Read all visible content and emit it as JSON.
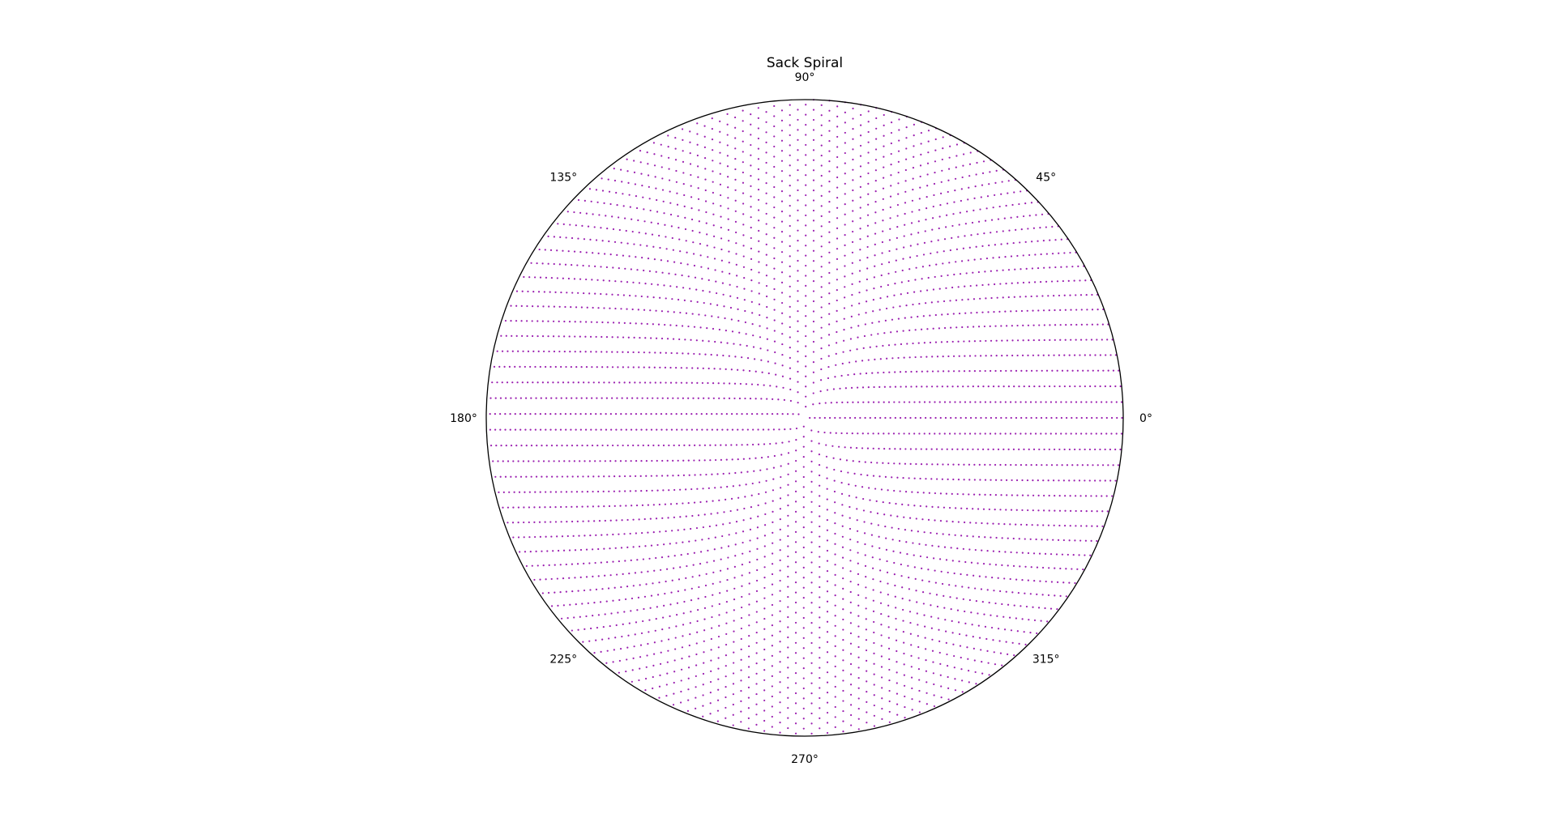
{
  "chart_data": {
    "type": "scatter",
    "projection": "polar",
    "title": "Sack Spiral",
    "theta_ticks": [
      {
        "angle_deg": 0,
        "label": "0°"
      },
      {
        "angle_deg": 45,
        "label": "45°"
      },
      {
        "angle_deg": 90,
        "label": "90°"
      },
      {
        "angle_deg": 135,
        "label": "135°"
      },
      {
        "angle_deg": 180,
        "label": "180°"
      },
      {
        "angle_deg": 225,
        "label": "225°"
      },
      {
        "angle_deg": 270,
        "label": "270°"
      },
      {
        "angle_deg": 315,
        "label": "315°"
      }
    ],
    "series": [
      {
        "point_rule": "Sack spiral: the points are the integers n = 1 … 4000, each plotted at theta = 2*pi*sqrt(n) radians, r = sqrt(n)",
        "n_range": [
          1,
          4000
        ],
        "color": "#9b1fb0",
        "marker": "point"
      }
    ],
    "rlim": [
      0,
      63.25
    ],
    "grid": false,
    "legend": "none"
  }
}
